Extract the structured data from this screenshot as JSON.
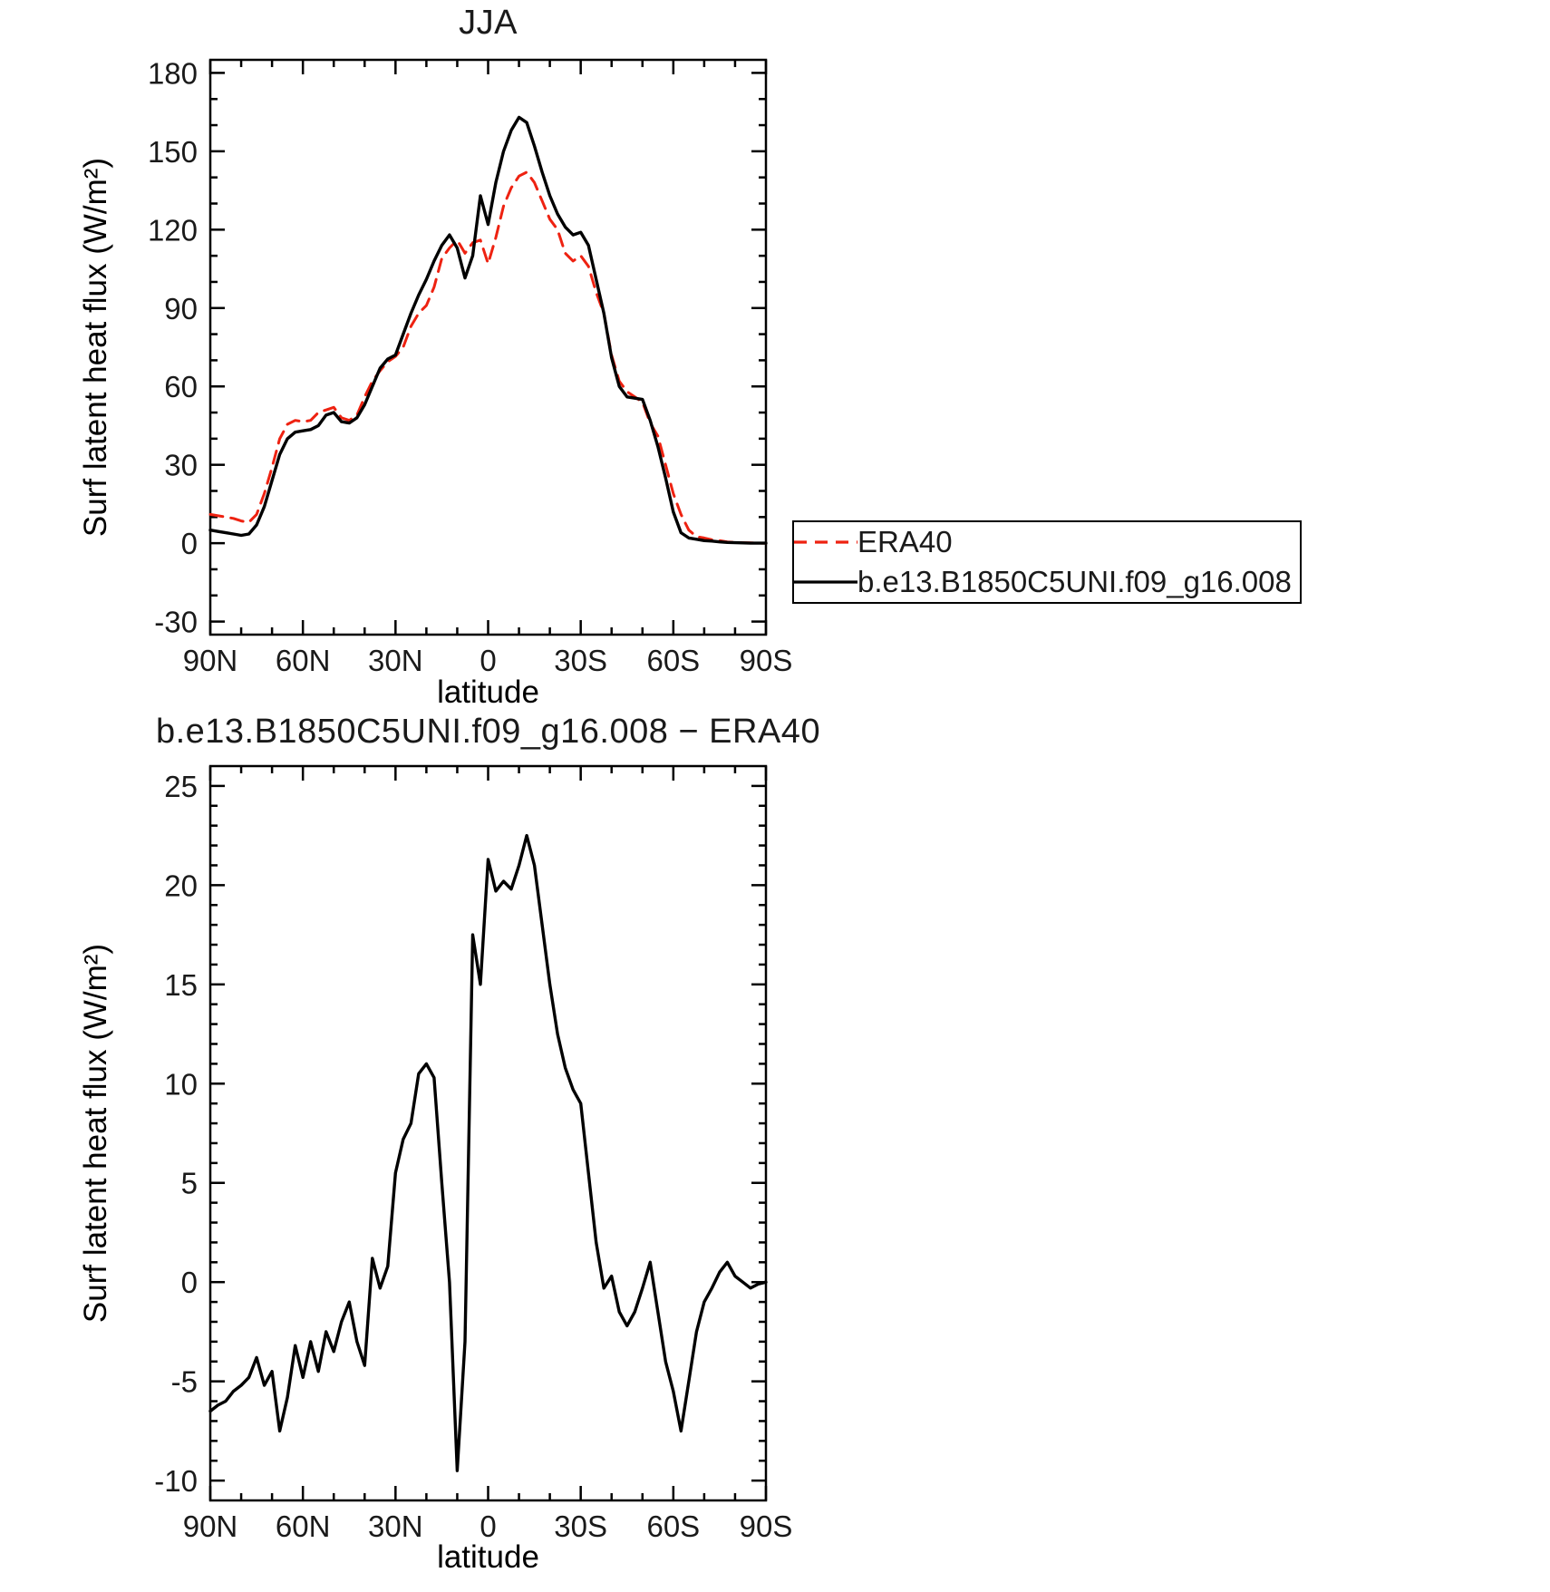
{
  "page": {
    "background": "#ffffff"
  },
  "legend": {
    "items": [
      {
        "id": "era40",
        "label": "ERA40",
        "color": "#ee2211",
        "style": "dashed"
      },
      {
        "id": "model",
        "label": "b.e13.B1850C5UNI.f09_g16.008",
        "color": "#000000",
        "style": "solid"
      }
    ]
  },
  "chart_data": [
    {
      "type": "line",
      "title": "JJA",
      "xlabel": "latitude",
      "ylabel": "Surf latent heat flux (W/m²)",
      "grid": false,
      "legend_position": "outside-right",
      "xlim": [
        90,
        -90
      ],
      "ylim": [
        -30,
        180
      ],
      "x_tick_labels": [
        "90N",
        "60N",
        "30N",
        "0",
        "30S",
        "60S",
        "90S"
      ],
      "x_tick_values": [
        90,
        60,
        30,
        0,
        -30,
        -60,
        -90
      ],
      "y_tick_values": [
        -30,
        0,
        30,
        60,
        90,
        120,
        150,
        180
      ],
      "x": [
        90,
        87.5,
        85,
        82.5,
        80,
        77.5,
        75,
        72.5,
        70,
        67.5,
        65,
        62.5,
        60,
        57.5,
        55,
        52.5,
        50,
        47.5,
        45,
        42.5,
        40,
        37.5,
        35,
        32.5,
        30,
        27.5,
        25,
        22.5,
        20,
        17.5,
        15,
        12.5,
        10,
        7.5,
        5,
        2.5,
        0,
        -2.5,
        -5,
        -7.5,
        -10,
        -12.5,
        -15,
        -17.5,
        -20,
        -22.5,
        -25,
        -27.5,
        -30,
        -32.5,
        -35,
        -37.5,
        -40,
        -42.5,
        -45,
        -47.5,
        -50,
        -52.5,
        -55,
        -57.5,
        -60,
        -62.5,
        -65,
        -67.5,
        -70,
        -72.5,
        -75,
        -77.5,
        -80,
        -82.5,
        -85,
        -87.5,
        -90
      ],
      "series": [
        {
          "id": "era40",
          "name": "ERA40",
          "color": "#ee2211",
          "dash": [
            14,
            9
          ],
          "values": [
            11,
            10.5,
            10,
            9.5,
            8.5,
            8,
            11,
            19,
            29,
            40,
            45.5,
            47,
            46.5,
            47,
            50,
            51,
            52,
            48,
            47,
            49,
            56,
            62,
            66,
            69.5,
            71.5,
            75,
            83,
            88,
            91,
            98,
            109,
            113,
            116,
            111,
            115,
            116,
            107,
            117,
            129,
            136,
            140.5,
            142,
            138,
            131,
            124,
            120,
            111,
            108,
            110,
            106,
            96,
            88,
            72,
            62,
            58,
            56,
            54,
            46,
            41,
            30,
            19,
            11,
            5,
            2.5,
            2,
            1.3,
            1,
            0.5,
            0.3,
            0.2,
            0.1,
            0,
            0
          ]
        },
        {
          "id": "model",
          "name": "b.e13.B1850C5UNI.f09_g16.008",
          "color": "#000000",
          "dash": null,
          "values": [
            5,
            4.5,
            4,
            3.5,
            3,
            3.5,
            7,
            14,
            24,
            34,
            40,
            42.5,
            43,
            43.5,
            45,
            49,
            50,
            46.5,
            46,
            48,
            53,
            60,
            67,
            70.5,
            72,
            80,
            88,
            95,
            101,
            108,
            114,
            118,
            113,
            101.5,
            110,
            133,
            122,
            138,
            150,
            158,
            163,
            161,
            152,
            142,
            133,
            126,
            121,
            118,
            119,
            114,
            101,
            88,
            71,
            60,
            56,
            55.5,
            55,
            47,
            37,
            25,
            12,
            4,
            2,
            1.5,
            1,
            0.8,
            0.5,
            0.3,
            0.2,
            0.1,
            0,
            0,
            0
          ]
        }
      ]
    },
    {
      "type": "line",
      "title": "b.e13.B1850C5UNI.f09_g16.008 − ERA40",
      "xlabel": "latitude",
      "ylabel": "Surf latent heat flux (W/m²)",
      "grid": false,
      "legend_position": "none",
      "xlim": [
        90,
        -90
      ],
      "ylim": [
        -10,
        25
      ],
      "x_tick_labels": [
        "90N",
        "60N",
        "30N",
        "0",
        "30S",
        "60S",
        "90S"
      ],
      "x_tick_values": [
        90,
        60,
        30,
        0,
        -30,
        -60,
        -90
      ],
      "y_tick_values": [
        -10,
        -5,
        0,
        5,
        10,
        15,
        20,
        25
      ],
      "x": [
        90,
        87.5,
        85,
        82.5,
        80,
        77.5,
        75,
        72.5,
        70,
        67.5,
        65,
        62.5,
        60,
        57.5,
        55,
        52.5,
        50,
        47.5,
        45,
        42.5,
        40,
        37.5,
        35,
        32.5,
        30,
        27.5,
        25,
        22.5,
        20,
        17.5,
        15,
        12.5,
        10,
        7.5,
        5,
        2.5,
        0,
        -2.5,
        -5,
        -7.5,
        -10,
        -12.5,
        -15,
        -17.5,
        -20,
        -22.5,
        -25,
        -27.5,
        -30,
        -32.5,
        -35,
        -37.5,
        -40,
        -42.5,
        -45,
        -47.5,
        -50,
        -52.5,
        -55,
        -57.5,
        -60,
        -62.5,
        -65,
        -67.5,
        -70,
        -72.5,
        -75,
        -77.5,
        -80,
        -82.5,
        -85,
        -87.5,
        -90
      ],
      "series": [
        {
          "id": "difference",
          "name": "difference",
          "color": "#000000",
          "dash": null,
          "values": [
            -6.5,
            -6.2,
            -6,
            -5.5,
            -5.2,
            -4.8,
            -3.8,
            -5.2,
            -4.5,
            -7.5,
            -5.8,
            -3.2,
            -4.8,
            -3,
            -4.5,
            -2.5,
            -3.5,
            -2,
            -1,
            -3,
            -4.2,
            1.2,
            -0.3,
            0.8,
            5.5,
            7.2,
            8,
            10.5,
            11,
            10.3,
            5,
            0,
            -9.5,
            -3,
            17.5,
            15,
            21.3,
            19.7,
            20.2,
            19.8,
            21,
            22.5,
            21,
            18,
            15,
            12.5,
            10.8,
            9.7,
            9,
            5.5,
            2,
            -0.3,
            0.3,
            -1.5,
            -2.2,
            -1.5,
            -0.3,
            1,
            -1.5,
            -4,
            -5.5,
            -7.5,
            -5,
            -2.5,
            -1,
            -0.3,
            0.5,
            1,
            0.3,
            0,
            -0.3,
            -0.1,
            0
          ]
        }
      ]
    }
  ]
}
